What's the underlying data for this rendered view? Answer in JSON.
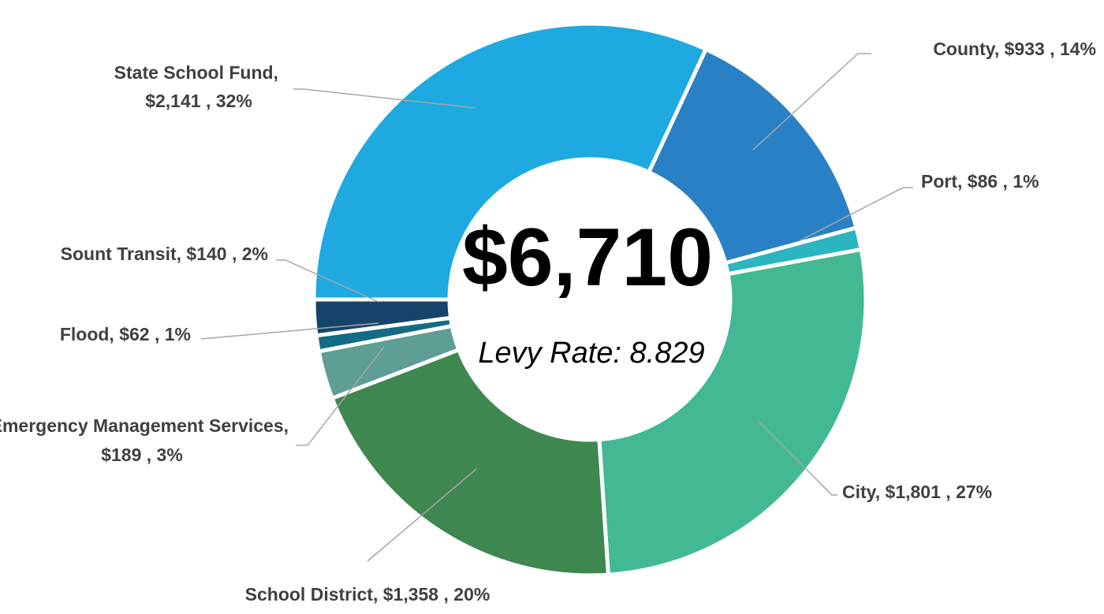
{
  "chart_data": {
    "type": "donut",
    "categories": [
      "State School Fund",
      "County",
      "Port",
      "City",
      "School District",
      "Emergency Management Services",
      "Flood",
      "Sount Transit"
    ],
    "values": [
      2141,
      933,
      86,
      1801,
      1358,
      189,
      62,
      140
    ],
    "value_labels": [
      "$2,141",
      "$933",
      "$86",
      "$1,801",
      "$1,358",
      "$189",
      "$62",
      "$140"
    ],
    "percents": [
      32,
      14,
      1,
      27,
      20,
      3,
      1,
      2
    ],
    "percent_labels": [
      "32%",
      "14%",
      "1%",
      "27%",
      "20%",
      "3%",
      "1%",
      "2%"
    ],
    "colors": [
      "#1EA9E1",
      "#2A80C4",
      "#2BB5C0",
      "#42B994",
      "#3F8751",
      "#5E9E94",
      "#136C86",
      "#16446A"
    ],
    "total": 6710,
    "total_label": "$6,710",
    "subtitle": "Levy Rate: 8.829"
  }
}
